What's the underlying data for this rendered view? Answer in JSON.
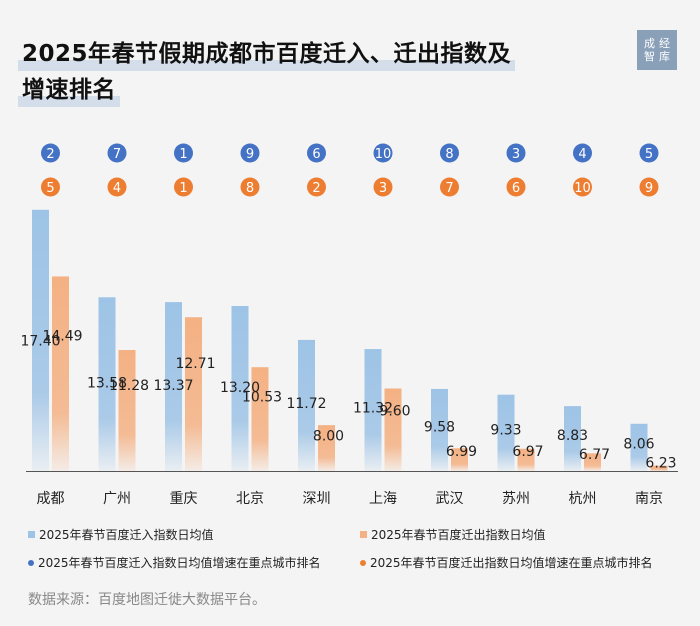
{
  "title": {
    "line1": "2025年春节假期成都市百度迁入、迁出指数及",
    "line2": "增速排名"
  },
  "logo": {
    "row1": "成经",
    "row2": "智库"
  },
  "source": "数据来源：百度地图迁徙大数据平台。",
  "legend": [
    "2025年春节百度迁入指数日均值",
    "2025年春节百度迁出指数日均值",
    "2025年春节百度迁入指数日均值增速在重点城市排名",
    "2025年春节百度迁出指数日均值增速在重点城市排名"
  ],
  "colors": {
    "in_bar": "#9dc3e6",
    "out_bar": "#f4b183",
    "in_rank": "#4472c4",
    "out_rank": "#ed7d31"
  },
  "chart_data": {
    "type": "bar",
    "categories": [
      "成都",
      "广州",
      "重庆",
      "北京",
      "深圳",
      "上海",
      "武汉",
      "苏州",
      "杭州",
      "南京"
    ],
    "series": [
      {
        "name": "2025年春节百度迁入指数日均值",
        "values": [
          17.4,
          13.58,
          13.37,
          13.2,
          11.72,
          11.32,
          9.58,
          9.33,
          8.83,
          8.06
        ]
      },
      {
        "name": "2025年春节百度迁出指数日均值",
        "values": [
          14.49,
          11.28,
          12.71,
          10.53,
          8.0,
          9.6,
          6.99,
          6.97,
          6.77,
          6.23
        ]
      }
    ],
    "value_labels": {
      "in": [
        "17.40",
        "13.58",
        "13.37",
        "13.20",
        "11.72",
        "11.32",
        "9.58",
        "9.33",
        "8.83",
        "8.06"
      ],
      "out": [
        "14.49",
        "11.28",
        "12.71",
        "10.53",
        "8.00",
        "9.60",
        "6.99",
        "6.97",
        "6.77",
        "6.23"
      ]
    },
    "ranks": {
      "in": [
        2,
        7,
        1,
        9,
        6,
        10,
        8,
        3,
        4,
        5
      ],
      "out": [
        5,
        4,
        1,
        8,
        2,
        3,
        7,
        6,
        10,
        9
      ]
    },
    "ylim": [
      6,
      18
    ],
    "legend_position": "bottom",
    "grid": false
  }
}
